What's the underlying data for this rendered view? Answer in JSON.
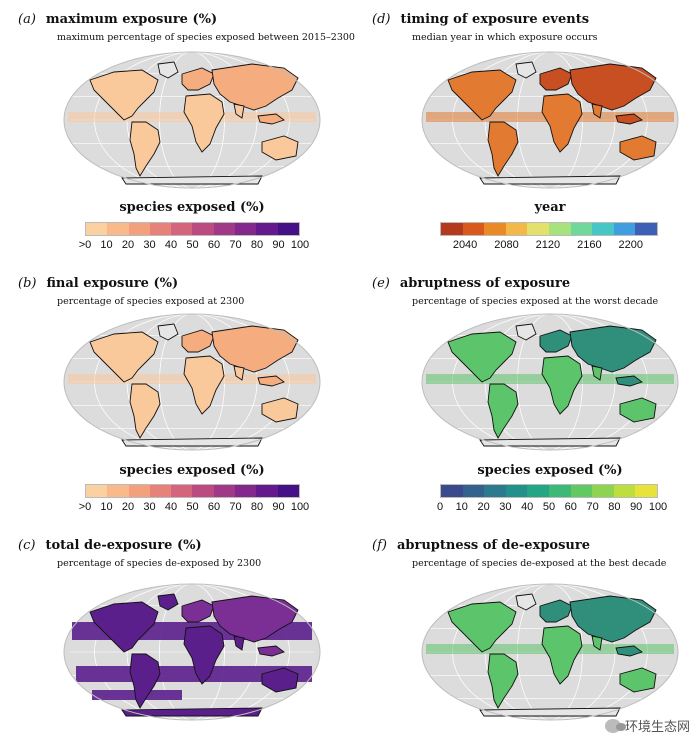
{
  "panels": [
    {
      "letter": "(a)",
      "title": "maximum exposure (%)",
      "subtitle": "maximum percentage of species exposed between 2015–2300",
      "legend": {
        "title": "species exposed (%)",
        "ticks": [
          ">0",
          "10",
          "20",
          "30",
          "40",
          "50",
          "60",
          "70",
          "80",
          "90",
          "100"
        ],
        "colors": [
          "#fbd1a2",
          "#f9b98a",
          "#f3a07d",
          "#e7827a",
          "#d3657d",
          "#bc4b81",
          "#a03a86",
          "#82298b",
          "#64198d",
          "#451187"
        ]
      },
      "map": {
        "fill": "light-orange",
        "hotspots": "purple-equatorial-bands"
      }
    },
    {
      "letter": "(b)",
      "title": "final exposure (%)",
      "subtitle": "percentage of species exposed at 2300",
      "legend": {
        "title": "species exposed (%)",
        "ticks": [
          ">0",
          "10",
          "20",
          "30",
          "40",
          "50",
          "60",
          "70",
          "80",
          "90",
          "100"
        ],
        "colors": [
          "#fbd1a2",
          "#f9b98a",
          "#f3a07d",
          "#e7827a",
          "#d3657d",
          "#bc4b81",
          "#a03a86",
          "#82298b",
          "#64198d",
          "#451187"
        ]
      },
      "map": {
        "fill": "light-orange",
        "hotspots": "sparse-tropics"
      }
    },
    {
      "letter": "(c)",
      "title": "total de-exposure (%)",
      "subtitle": "percentage of species de-exposed by 2300",
      "legend": null,
      "map": {
        "fill": "purple",
        "hotspots": "global-coverage"
      }
    },
    {
      "letter": "(d)",
      "title": "timing of exposure events",
      "subtitle": "median year in which exposure occurs",
      "legend": {
        "title": "year",
        "ticks": [
          "2040",
          "2080",
          "2120",
          "2160",
          "2200"
        ],
        "colors": [
          "#b43a1f",
          "#d9591c",
          "#ea8a26",
          "#f2b84a",
          "#e3e06b",
          "#a8e27c",
          "#6fd89a",
          "#46c6c4",
          "#3f9ee0",
          "#3d5fb8"
        ]
      },
      "map": {
        "fill": "orange-red",
        "hotspots": "tropics"
      }
    },
    {
      "letter": "(e)",
      "title": "abruptness of exposure",
      "subtitle": "percentage of species exposed at the worst decade",
      "legend": {
        "title": "species exposed (%)",
        "ticks": [
          "0",
          "10",
          "20",
          "30",
          "40",
          "50",
          "60",
          "70",
          "80",
          "90",
          "100"
        ],
        "colors": [
          "#3b4a8c",
          "#33638d",
          "#2b7a8e",
          "#23908c",
          "#24a584",
          "#3cb976",
          "#62c862",
          "#8fd450",
          "#bede3f",
          "#e8e33a"
        ]
      },
      "map": {
        "fill": "green",
        "hotspots": "tropics"
      }
    },
    {
      "letter": "(f)",
      "title": "abruptness of de-exposure",
      "subtitle": "percentage of species de-exposed at the best decade",
      "legend": null,
      "map": {
        "fill": "green",
        "hotspots": "tropics"
      }
    }
  ],
  "watermark": "环境生态网"
}
